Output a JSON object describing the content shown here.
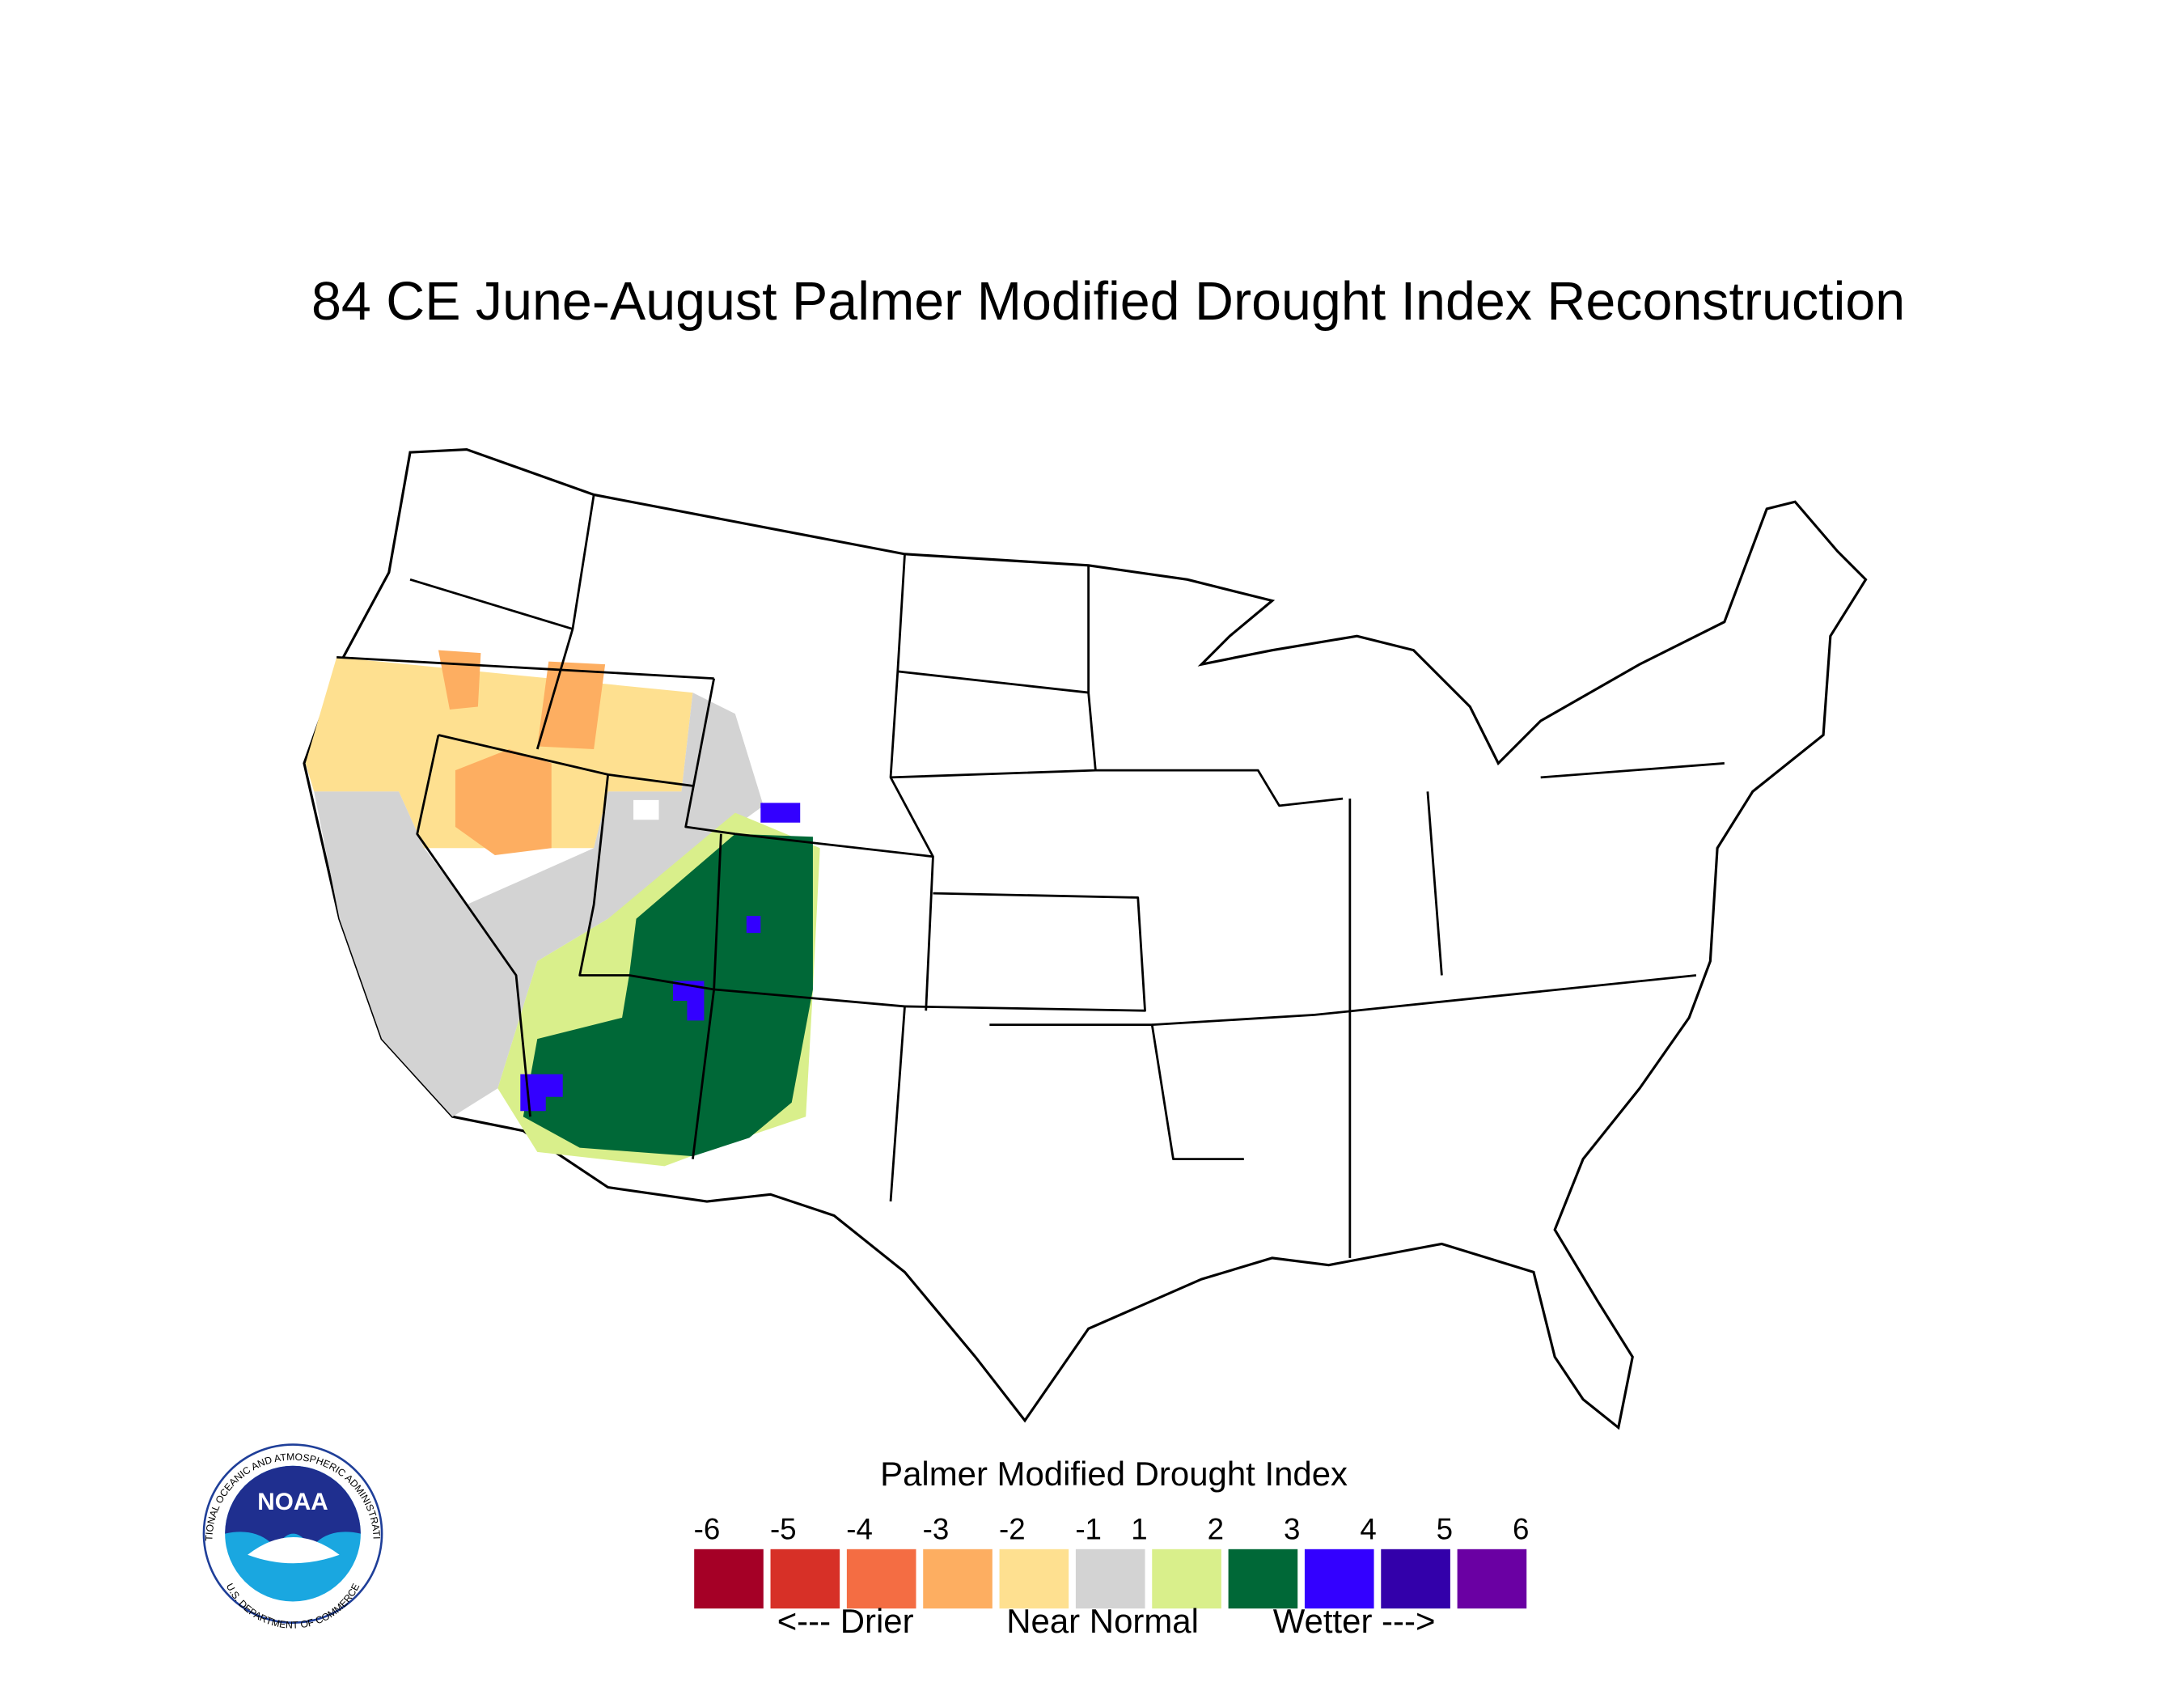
{
  "title": "84 CE  June-August  Palmer Modified Drought Index Reconstruction",
  "legend": {
    "title": "Palmer Modified Drought Index",
    "labels": [
      -6,
      -5,
      -4,
      -3,
      -2,
      -1,
      1,
      2,
      3,
      4,
      5,
      6
    ],
    "colors": [
      "#a50026",
      "#d73027",
      "#f46d43",
      "#fdae61",
      "#fee090",
      "#d3d3d3",
      "#d9ef8b",
      "#006837",
      "#3300ff",
      "#3300aa",
      "#6a00a3"
    ],
    "captions": [
      "<--- Drier",
      "Near Normal",
      "Wetter --->"
    ]
  },
  "logo": {
    "text": "NOAA",
    "ring_top": "NATIONAL OCEANIC AND ATMOSPHERIC ADMINISTRATION",
    "ring_bottom": "U.S. DEPARTMENT OF COMMERCE"
  }
}
